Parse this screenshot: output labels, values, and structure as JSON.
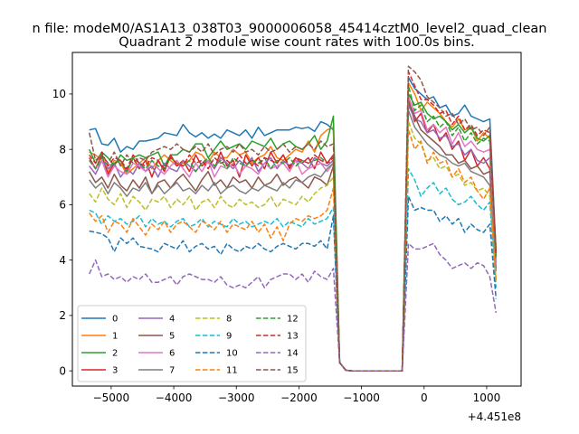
{
  "suptitle": "n file: modeM0/AS1A13_038T03_9000006058_45414cztM0_level2_quad_clean",
  "chart_data": {
    "type": "line",
    "title": "Quadrant 2 module wise count rates with 100.0s bins.",
    "xlabel": "",
    "ylabel": "",
    "x_offset_label": "+4.451e8",
    "xlim": [
      -5620,
      1550
    ],
    "ylim": [
      -0.55,
      11.5
    ],
    "xticks": [
      -5000,
      -4000,
      -3000,
      -2000,
      -1000,
      0,
      1000
    ],
    "xtick_labels": [
      "−5000",
      "−4000",
      "−3000",
      "−2000",
      "−1000",
      "0",
      "1000"
    ],
    "yticks": [
      0,
      2,
      4,
      6,
      8,
      10
    ],
    "ytick_labels": [
      "0",
      "2",
      "4",
      "6",
      "8",
      "10"
    ],
    "grid": false,
    "legend_position": "lower-left",
    "x": [
      -5350,
      -5250,
      -5150,
      -5050,
      -4950,
      -4850,
      -4750,
      -4650,
      -4550,
      -4450,
      -4350,
      -4250,
      -4150,
      -4050,
      -3950,
      -3850,
      -3750,
      -3650,
      -3550,
      -3450,
      -3350,
      -3250,
      -3150,
      -3050,
      -2950,
      -2850,
      -2750,
      -2650,
      -2550,
      -2450,
      -2350,
      -2250,
      -2150,
      -2050,
      -1950,
      -1850,
      -1750,
      -1650,
      -1550,
      -1450,
      -1350,
      -1250,
      -1150,
      -1050,
      -950,
      -850,
      -750,
      -650,
      -550,
      -450,
      -350,
      -250,
      -150,
      -50,
      50,
      150,
      250,
      350,
      450,
      550,
      650,
      750,
      850,
      950,
      1050,
      1150
    ],
    "series": [
      {
        "name": "0",
        "color": "#1f77b4",
        "dash": "solid",
        "values": [
          8.7,
          8.75,
          8.2,
          8.15,
          8.4,
          7.9,
          8.1,
          8.0,
          8.3,
          8.3,
          8.35,
          8.4,
          8.6,
          8.55,
          8.5,
          8.9,
          8.6,
          8.45,
          8.6,
          8.4,
          8.55,
          8.4,
          8.7,
          8.6,
          8.5,
          8.7,
          8.4,
          8.8,
          8.5,
          8.6,
          8.7,
          8.7,
          8.7,
          8.8,
          8.75,
          8.8,
          8.65,
          9.0,
          8.9,
          8.7,
          0.3,
          0.02,
          0,
          0,
          0,
          0,
          0,
          0,
          0,
          0,
          0,
          10.6,
          10.2,
          10.0,
          9.8,
          9.9,
          9.5,
          9.6,
          9.2,
          9.3,
          9.6,
          9.2,
          9.1,
          9.0,
          9.1,
          4.3
        ]
      },
      {
        "name": "1",
        "color": "#ff7f0e",
        "dash": "solid",
        "values": [
          7.9,
          7.8,
          7.6,
          7.2,
          7.6,
          7.5,
          7.1,
          7.3,
          7.5,
          7.7,
          7.3,
          7.6,
          7.8,
          7.6,
          7.4,
          7.5,
          7.6,
          7.9,
          7.8,
          7.5,
          7.9,
          7.7,
          7.7,
          8.0,
          7.8,
          7.9,
          7.5,
          7.7,
          7.8,
          8.1,
          7.7,
          7.6,
          7.8,
          8.0,
          7.9,
          8.3,
          7.9,
          8.5,
          8.7,
          8.8,
          0.3,
          0.02,
          0,
          0,
          0,
          0,
          0,
          0,
          0,
          0,
          0,
          10.4,
          10.0,
          9.4,
          9.7,
          9.5,
          9.3,
          9.0,
          8.8,
          9.1,
          8.7,
          8.8,
          8.3,
          8.6,
          8.4,
          4.4
        ]
      },
      {
        "name": "2",
        "color": "#2ca02c",
        "dash": "solid",
        "values": [
          8.0,
          7.5,
          7.9,
          7.7,
          7.4,
          7.8,
          7.6,
          7.7,
          7.8,
          7.7,
          7.8,
          7.9,
          7.4,
          7.8,
          7.8,
          8.0,
          7.9,
          8.2,
          8.2,
          7.7,
          8.0,
          8.3,
          8.0,
          8.1,
          8.2,
          8.0,
          8.3,
          8.2,
          8.1,
          8.4,
          8.0,
          8.2,
          8.3,
          8.1,
          8.0,
          8.2,
          8.5,
          8.0,
          8.3,
          9.2,
          0.3,
          0.02,
          0,
          0,
          0,
          0,
          0,
          0,
          0,
          0,
          0,
          10.0,
          9.6,
          9.7,
          9.3,
          9.1,
          9.2,
          9.0,
          8.7,
          8.9,
          8.6,
          8.8,
          8.4,
          8.3,
          8.5,
          4.2
        ]
      },
      {
        "name": "3",
        "color": "#d62728",
        "dash": "solid",
        "values": [
          7.7,
          7.3,
          7.8,
          7.1,
          7.5,
          7.6,
          7.2,
          7.7,
          7.3,
          7.6,
          7.0,
          7.6,
          7.2,
          7.8,
          7.4,
          7.6,
          7.2,
          7.8,
          7.4,
          7.6,
          7.3,
          7.9,
          7.4,
          7.6,
          7.0,
          7.8,
          7.4,
          7.7,
          7.3,
          7.9,
          7.5,
          7.8,
          7.3,
          7.7,
          7.5,
          7.7,
          7.3,
          7.9,
          7.5,
          7.8,
          0.3,
          0.02,
          0,
          0,
          0,
          0,
          0,
          0,
          0,
          0,
          0,
          9.8,
          9.0,
          9.3,
          8.6,
          8.9,
          8.3,
          8.6,
          8.0,
          8.3,
          7.6,
          8.0,
          7.4,
          7.7,
          7.3,
          3.9
        ]
      },
      {
        "name": "4",
        "color": "#9467bd",
        "dash": "solid",
        "values": [
          7.4,
          7.1,
          7.6,
          7.3,
          7.5,
          7.0,
          7.3,
          7.1,
          7.5,
          7.2,
          7.4,
          7.0,
          7.5,
          7.3,
          7.2,
          7.6,
          7.4,
          7.2,
          7.5,
          7.6,
          7.3,
          7.7,
          7.5,
          7.3,
          7.6,
          7.4,
          7.7,
          7.2,
          7.5,
          7.7,
          7.3,
          7.6,
          7.4,
          7.6,
          7.5,
          7.3,
          7.7,
          7.5,
          7.4,
          7.6,
          0.3,
          0.02,
          0,
          0,
          0,
          0,
          0,
          0,
          0,
          0,
          0,
          9.6,
          9.1,
          9.0,
          8.6,
          8.7,
          8.4,
          8.5,
          8.1,
          8.2,
          7.8,
          8.0,
          7.6,
          7.5,
          7.7,
          4.0
        ]
      },
      {
        "name": "5",
        "color": "#8c564b",
        "dash": "solid",
        "values": [
          7.2,
          6.8,
          7.0,
          6.6,
          7.1,
          6.7,
          6.5,
          6.9,
          6.6,
          7.0,
          6.4,
          6.8,
          6.9,
          6.6,
          6.9,
          7.1,
          6.8,
          6.5,
          6.9,
          7.2,
          6.7,
          6.9,
          6.6,
          7.0,
          6.8,
          6.9,
          6.6,
          7.0,
          6.7,
          6.8,
          7.1,
          6.7,
          6.9,
          7.0,
          6.8,
          6.6,
          7.0,
          6.9,
          6.7,
          7.4,
          0.3,
          0.02,
          0,
          0,
          0,
          0,
          0,
          0,
          0,
          0,
          0,
          9.7,
          9.2,
          8.7,
          8.5,
          8.3,
          8.1,
          7.8,
          7.8,
          7.5,
          7.6,
          7.3,
          7.4,
          7.1,
          7.2,
          3.7
        ]
      },
      {
        "name": "6",
        "color": "#e377c2",
        "dash": "solid",
        "values": [
          7.6,
          7.3,
          7.6,
          7.0,
          7.4,
          7.2,
          7.1,
          7.5,
          7.4,
          7.2,
          7.6,
          7.3,
          7.1,
          7.4,
          7.6,
          7.3,
          7.0,
          7.5,
          7.2,
          7.6,
          7.0,
          7.4,
          7.3,
          7.5,
          7.1,
          7.4,
          7.3,
          7.1,
          7.5,
          7.3,
          7.4,
          7.5,
          7.2,
          7.6,
          7.1,
          7.3,
          7.4,
          7.5,
          7.2,
          7.5,
          0.3,
          0.02,
          0,
          0,
          0,
          0,
          0,
          0,
          0,
          0,
          0,
          9.9,
          9.3,
          9.4,
          8.7,
          8.9,
          8.6,
          8.8,
          8.2,
          8.6,
          8.1,
          8.3,
          8.0,
          7.9,
          8.0,
          3.9
        ]
      },
      {
        "name": "7",
        "color": "#7f7f7f",
        "dash": "solid",
        "values": [
          6.9,
          6.6,
          6.8,
          6.4,
          6.8,
          6.6,
          6.3,
          6.6,
          6.5,
          6.8,
          6.4,
          6.7,
          6.4,
          6.6,
          6.8,
          6.5,
          6.6,
          6.4,
          6.7,
          6.5,
          6.8,
          6.4,
          6.6,
          6.7,
          6.5,
          6.4,
          6.6,
          6.5,
          6.7,
          6.6,
          6.5,
          6.8,
          6.6,
          6.9,
          6.8,
          7.0,
          7.1,
          7.0,
          7.3,
          7.5,
          0.3,
          0.02,
          0,
          0,
          0,
          0,
          0,
          0,
          0,
          0,
          0,
          9.4,
          8.8,
          8.5,
          8.2,
          8.0,
          7.8,
          7.7,
          7.5,
          7.4,
          7.5,
          7.2,
          7.1,
          7.0,
          6.7,
          3.6
        ]
      },
      {
        "name": "8",
        "color": "#bcbd22",
        "dash": "dashed",
        "values": [
          6.4,
          6.1,
          6.6,
          6.2,
          6.0,
          6.4,
          5.9,
          6.3,
          6.1,
          5.8,
          6.2,
          6.1,
          6.3,
          5.9,
          6.2,
          6.0,
          6.3,
          5.8,
          6.1,
          6.2,
          5.9,
          6.3,
          6.0,
          5.9,
          6.2,
          6.0,
          6.1,
          5.9,
          6.0,
          6.3,
          5.9,
          6.2,
          6.1,
          6.0,
          6.3,
          6.1,
          6.4,
          6.6,
          6.7,
          7.0,
          0.3,
          0.02,
          0,
          0,
          0,
          0,
          0,
          0,
          0,
          0,
          0,
          9.0,
          8.4,
          8.2,
          7.6,
          7.7,
          7.3,
          7.4,
          7.0,
          7.1,
          6.7,
          6.8,
          6.5,
          6.6,
          6.3,
          3.3
        ]
      },
      {
        "name": "9",
        "color": "#17becf",
        "dash": "dashed",
        "values": [
          5.8,
          5.7,
          5.3,
          5.6,
          5.4,
          5.5,
          5.3,
          5.4,
          5.6,
          5.2,
          5.5,
          5.3,
          5.4,
          5.2,
          5.4,
          5.5,
          5.2,
          5.3,
          5.5,
          5.2,
          5.4,
          5.3,
          5.2,
          5.5,
          5.3,
          5.4,
          5.2,
          5.3,
          5.4,
          5.3,
          5.5,
          5.2,
          5.4,
          5.3,
          5.2,
          5.5,
          5.3,
          5.4,
          5.5,
          5.9,
          0.3,
          0.02,
          0,
          0,
          0,
          0,
          0,
          0,
          0,
          0,
          0,
          7.3,
          6.9,
          6.3,
          6.6,
          6.8,
          6.4,
          6.6,
          6.2,
          6.0,
          6.1,
          6.3,
          6.0,
          5.8,
          6.1,
          3.0
        ]
      },
      {
        "name": "10",
        "color": "#1f77b4",
        "dash": "dashed",
        "values": [
          5.05,
          5.0,
          4.95,
          4.8,
          4.3,
          4.8,
          4.6,
          4.8,
          4.5,
          4.45,
          4.4,
          4.3,
          4.6,
          4.5,
          4.4,
          4.7,
          4.3,
          4.5,
          4.6,
          4.4,
          4.5,
          4.2,
          4.6,
          4.4,
          4.3,
          4.5,
          4.4,
          4.6,
          4.4,
          4.3,
          4.5,
          4.6,
          4.5,
          4.4,
          4.6,
          4.6,
          4.5,
          4.7,
          4.4,
          5.6,
          0.3,
          0.02,
          0,
          0,
          0,
          0,
          0,
          0,
          0,
          0,
          0,
          6.3,
          5.8,
          5.9,
          5.8,
          5.8,
          5.4,
          5.6,
          5.3,
          5.5,
          5.0,
          5.3,
          5.1,
          5.0,
          5.3,
          2.6
        ]
      },
      {
        "name": "11",
        "color": "#ff7f0e",
        "dash": "dashed",
        "values": [
          5.7,
          5.4,
          5.6,
          5.0,
          5.4,
          5.3,
          5.0,
          5.5,
          5.2,
          4.9,
          5.3,
          5.1,
          5.4,
          5.0,
          5.3,
          5.4,
          5.2,
          5.0,
          5.4,
          5.3,
          5.1,
          5.4,
          5.0,
          5.3,
          5.2,
          5.1,
          5.4,
          5.0,
          5.3,
          4.8,
          5.2,
          4.7,
          5.3,
          5.5,
          5.4,
          5.6,
          5.5,
          5.6,
          5.8,
          6.6,
          0.3,
          0.02,
          0,
          0,
          0,
          0,
          0,
          0,
          0,
          0,
          0,
          8.7,
          8.0,
          8.3,
          7.5,
          7.9,
          7.5,
          7.6,
          7.0,
          7.3,
          6.8,
          7.0,
          6.5,
          6.2,
          6.6,
          3.2
        ]
      },
      {
        "name": "12",
        "color": "#2ca02c",
        "dash": "dashed",
        "values": [
          7.6,
          7.3,
          7.7,
          7.4,
          7.5,
          7.6,
          7.2,
          7.7,
          7.5,
          7.3,
          7.6,
          7.4,
          7.3,
          7.7,
          7.5,
          7.4,
          7.6,
          7.2,
          7.5,
          7.7,
          7.4,
          7.6,
          7.3,
          7.7,
          7.5,
          7.4,
          7.6,
          7.5,
          7.7,
          7.3,
          7.6,
          7.5,
          7.7,
          7.4,
          7.6,
          7.5,
          7.6,
          7.7,
          7.5,
          7.6,
          0.3,
          0.02,
          0,
          0,
          0,
          0,
          0,
          0,
          0,
          0,
          0,
          10.3,
          9.4,
          9.6,
          9.0,
          9.2,
          8.8,
          9.0,
          8.5,
          8.8,
          8.3,
          8.6,
          8.2,
          8.4,
          8.3,
          4.1
        ]
      },
      {
        "name": "13",
        "color": "#d62728",
        "dash": "dashed",
        "values": [
          7.8,
          7.5,
          7.9,
          7.4,
          7.7,
          7.6,
          7.3,
          7.8,
          7.5,
          7.4,
          7.7,
          7.6,
          7.3,
          7.7,
          7.5,
          7.4,
          7.8,
          7.5,
          7.6,
          7.3,
          7.7,
          7.5,
          7.6,
          7.4,
          7.8,
          7.5,
          7.6,
          7.4,
          7.7,
          7.6,
          7.5,
          7.8,
          7.4,
          7.7,
          7.6,
          7.5,
          7.8,
          7.6,
          7.5,
          7.7,
          0.3,
          0.02,
          0,
          0,
          0,
          0,
          0,
          0,
          0,
          0,
          0,
          10.8,
          10.3,
          9.8,
          9.8,
          9.6,
          9.3,
          9.4,
          8.9,
          9.2,
          8.7,
          8.9,
          8.5,
          8.7,
          8.6,
          4.2
        ]
      },
      {
        "name": "14",
        "color": "#9467bd",
        "dash": "dashed",
        "values": [
          3.5,
          4.0,
          3.4,
          3.5,
          3.3,
          3.4,
          3.2,
          3.4,
          3.3,
          3.5,
          3.2,
          3.2,
          3.3,
          3.4,
          3.1,
          3.4,
          3.5,
          3.4,
          3.3,
          3.3,
          3.2,
          3.4,
          3.1,
          3.0,
          3.1,
          3.0,
          3.2,
          3.4,
          3.0,
          3.3,
          3.4,
          3.5,
          3.5,
          3.3,
          3.5,
          3.2,
          3.6,
          3.4,
          3.3,
          3.7,
          0.3,
          0.02,
          0,
          0,
          0,
          0,
          0,
          0,
          0,
          0,
          0,
          4.6,
          4.4,
          4.4,
          4.5,
          4.6,
          4.2,
          4.0,
          3.7,
          3.8,
          3.9,
          3.7,
          3.9,
          3.8,
          3.4,
          2.1
        ]
      },
      {
        "name": "15",
        "color": "#8c564b",
        "dash": "dashed",
        "values": [
          8.6,
          7.6,
          7.8,
          7.5,
          7.9,
          7.4,
          7.8,
          7.5,
          7.7,
          7.6,
          7.9,
          8.0,
          8.1,
          8.0,
          8.2,
          8.0,
          7.9,
          8.1,
          7.9,
          8.2,
          7.8,
          8.0,
          8.1,
          7.9,
          8.2,
          7.9,
          8.0,
          7.8,
          8.1,
          7.9,
          8.0,
          8.2,
          7.9,
          8.1,
          8.0,
          8.2,
          8.0,
          8.3,
          8.1,
          8.2,
          0.3,
          0.02,
          0,
          0,
          0,
          0,
          0,
          0,
          0,
          0,
          0,
          11.0,
          10.8,
          10.5,
          9.9,
          9.7,
          9.5,
          9.2,
          9.3,
          8.9,
          9.1,
          8.7,
          8.8,
          8.5,
          8.8,
          4.3
        ]
      }
    ]
  }
}
